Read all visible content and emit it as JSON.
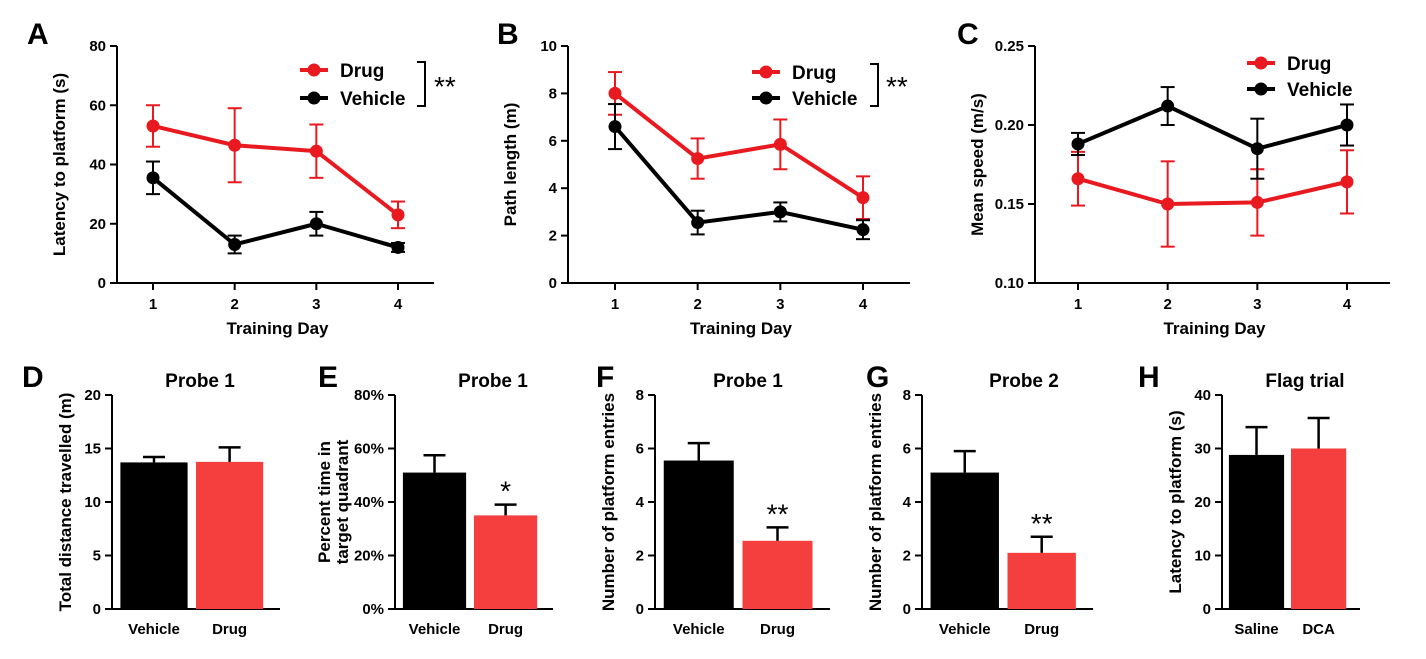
{
  "colors": {
    "drug": "#e8191f",
    "vehicle": "#000000",
    "drug_bar": "#f53f3f",
    "black": "#000000"
  },
  "chart_data": [
    {
      "id": "A",
      "type": "line",
      "letter": "A",
      "xlabel": "Training Day",
      "ylabel": "Latency to platform (s)",
      "x": [
        1,
        2,
        3,
        4
      ],
      "ylim": [
        0,
        80
      ],
      "yticks": [
        "0",
        "20",
        "40",
        "60",
        "80"
      ],
      "series": [
        {
          "name": "Drug",
          "color": "#e8191f",
          "values": [
            53,
            46.5,
            44.5,
            23
          ],
          "err": [
            7,
            12.5,
            9,
            4.5
          ]
        },
        {
          "name": "Vehicle",
          "color": "#000000",
          "values": [
            35.5,
            13,
            20,
            12
          ],
          "err": [
            5.5,
            3,
            4,
            1.5
          ]
        }
      ],
      "significance": "**"
    },
    {
      "id": "B",
      "type": "line",
      "letter": "B",
      "xlabel": "Training Day",
      "ylabel": "Path length (m)",
      "x": [
        1,
        2,
        3,
        4
      ],
      "ylim": [
        0,
        10
      ],
      "yticks": [
        "0",
        "2",
        "4",
        "6",
        "8",
        "10"
      ],
      "series": [
        {
          "name": "Drug",
          "color": "#e8191f",
          "values": [
            8,
            5.25,
            5.85,
            3.6
          ],
          "err": [
            0.9,
            0.85,
            1.05,
            0.9
          ]
        },
        {
          "name": "Vehicle",
          "color": "#000000",
          "values": [
            6.6,
            2.55,
            3.0,
            2.25
          ],
          "err": [
            0.95,
            0.5,
            0.4,
            0.4
          ]
        }
      ],
      "significance": "**"
    },
    {
      "id": "C",
      "type": "line",
      "letter": "C",
      "xlabel": "Training Day",
      "ylabel": "Mean speed (m/s)",
      "x": [
        1,
        2,
        3,
        4
      ],
      "ylim": [
        0.1,
        0.25
      ],
      "yticks": [
        "0.10",
        "0.15",
        "0.20",
        "0.25"
      ],
      "series": [
        {
          "name": "Drug",
          "color": "#e8191f",
          "values": [
            0.166,
            0.15,
            0.151,
            0.164
          ],
          "err": [
            0.017,
            0.027,
            0.021,
            0.02
          ]
        },
        {
          "name": "Vehicle",
          "color": "#000000",
          "values": [
            0.188,
            0.212,
            0.185,
            0.2
          ],
          "err": [
            0.007,
            0.012,
            0.019,
            0.013
          ]
        }
      ]
    },
    {
      "id": "D",
      "type": "bar",
      "letter": "D",
      "title": "Probe 1",
      "ylabel": "Total distance travelled (m)",
      "categories": [
        "Vehicle",
        "Drug"
      ],
      "values": [
        13.7,
        13.75
      ],
      "err": [
        0.5,
        1.35
      ],
      "colors": [
        "#000000",
        "#f53f3f"
      ],
      "ylim": [
        0,
        20
      ],
      "yticks": [
        "0",
        "5",
        "10",
        "15",
        "20"
      ],
      "sig": ""
    },
    {
      "id": "E",
      "type": "bar",
      "letter": "E",
      "title": "Probe 1",
      "ylabel": "Percent time in target quadrant",
      "ylabel_lines": [
        "Percent time in",
        "target quadrant"
      ],
      "categories": [
        "Vehicle",
        "Drug"
      ],
      "values": [
        51,
        35
      ],
      "err": [
        6.5,
        4
      ],
      "colors": [
        "#000000",
        "#f53f3f"
      ],
      "ylim": [
        0,
        80
      ],
      "yticks": [
        "0%",
        "20%",
        "40%",
        "60%",
        "80%"
      ],
      "sig": "*"
    },
    {
      "id": "F",
      "type": "bar",
      "letter": "F",
      "title": "Probe 1",
      "ylabel": "Number of platform entries",
      "categories": [
        "Vehicle",
        "Drug"
      ],
      "values": [
        5.55,
        2.55
      ],
      "err": [
        0.65,
        0.5
      ],
      "colors": [
        "#000000",
        "#f53f3f"
      ],
      "ylim": [
        0,
        8
      ],
      "yticks": [
        "0",
        "2",
        "4",
        "6",
        "8"
      ],
      "sig": "**"
    },
    {
      "id": "G",
      "type": "bar",
      "letter": "G",
      "title": "Probe 2",
      "ylabel": "Number of platform entries",
      "categories": [
        "Vehicle",
        "Drug"
      ],
      "values": [
        5.1,
        2.1
      ],
      "err": [
        0.8,
        0.6
      ],
      "colors": [
        "#000000",
        "#f53f3f"
      ],
      "ylim": [
        0,
        8
      ],
      "yticks": [
        "0",
        "2",
        "4",
        "6",
        "8"
      ],
      "sig": "**"
    },
    {
      "id": "H",
      "type": "bar",
      "letter": "H",
      "title": "Flag trial",
      "ylabel": "Latency to platform (s)",
      "categories": [
        "Saline",
        "DCA"
      ],
      "values": [
        28.8,
        30
      ],
      "err": [
        5.2,
        5.7
      ],
      "colors": [
        "#000000",
        "#f53f3f"
      ],
      "ylim": [
        0,
        40
      ],
      "yticks": [
        "0",
        "10",
        "20",
        "30",
        "40"
      ],
      "sig": ""
    }
  ]
}
